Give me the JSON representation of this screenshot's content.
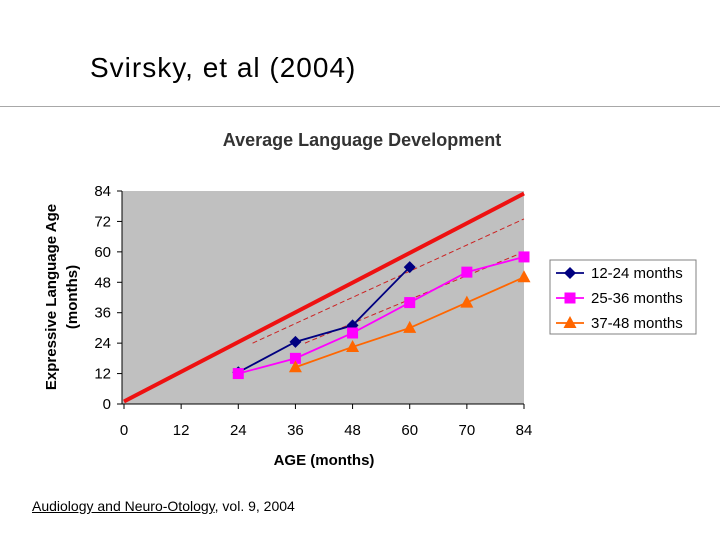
{
  "slide": {
    "title": "Svirsky, et al (2004)",
    "citation_journal": "Audiology and Neuro-Otology",
    "citation_rest": ", vol. 9, 2004"
  },
  "chart_data": {
    "type": "line",
    "title": "Average Language Development",
    "xlabel": "AGE (months)",
    "ylabel": "Expressive Language Age (months)",
    "categories": [
      "0",
      "12",
      "24",
      "36",
      "48",
      "60",
      "70",
      "84"
    ],
    "yticks": [
      0,
      12,
      24,
      36,
      48,
      60,
      72,
      84
    ],
    "ylim": [
      0,
      84
    ],
    "grid": false,
    "legend_position": "right",
    "plot_background": "#c0c0c0",
    "series": [
      {
        "name": "12-24 months",
        "color": "#000080",
        "marker": "diamond",
        "x": [
          24,
          36,
          48,
          60
        ],
        "y": [
          12.5,
          24.5,
          31,
          54
        ]
      },
      {
        "name": "25-36 months",
        "color": "#ff00ff",
        "marker": "square",
        "x": [
          24,
          36,
          48,
          60,
          70,
          84
        ],
        "y": [
          12,
          18,
          28,
          40,
          52,
          58
        ]
      },
      {
        "name": "37-48 months",
        "color": "#ff6600",
        "marker": "triangle",
        "x": [
          36,
          48,
          60,
          70,
          84
        ],
        "y": [
          14.5,
          22.5,
          30,
          40,
          50
        ]
      }
    ],
    "reference_lines": [
      {
        "style": "solid",
        "color": "#ee1111",
        "x": [
          0,
          84
        ],
        "y": [
          1,
          83
        ]
      },
      {
        "style": "dashed",
        "color": "#cc2222",
        "x": [
          27,
          84
        ],
        "y": [
          24,
          73
        ]
      },
      {
        "style": "dashed",
        "color": "#cc2222",
        "x": [
          38,
          84
        ],
        "y": [
          24,
          60
        ]
      }
    ]
  }
}
